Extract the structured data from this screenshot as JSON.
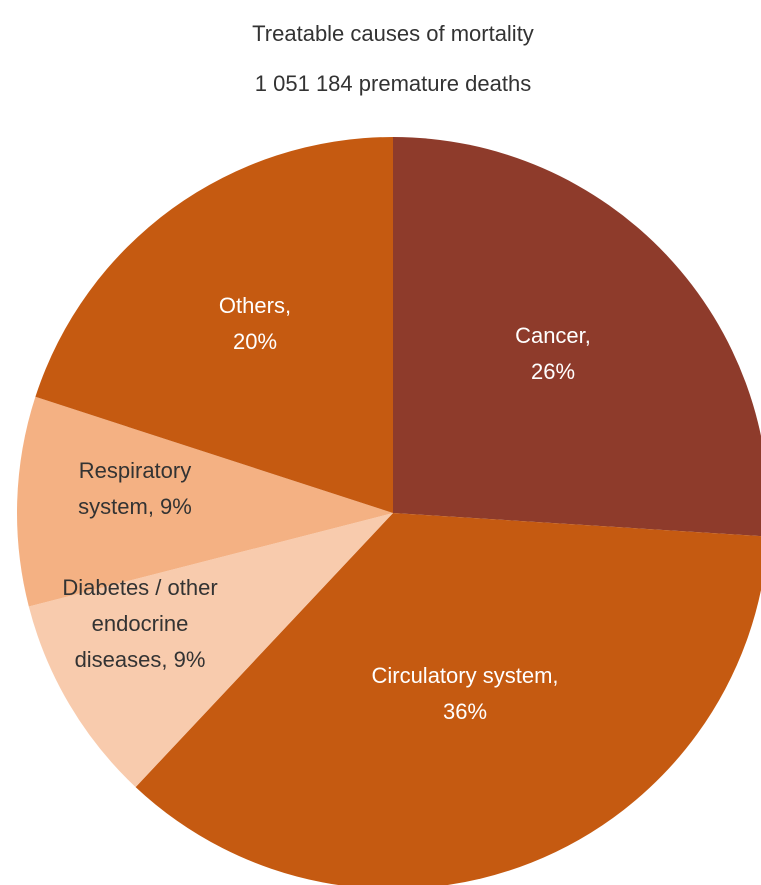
{
  "chart_data": {
    "type": "pie",
    "title": "Treatable causes of mortality",
    "subtitle": "1 051 184 premature deaths",
    "categories": [
      "Cancer",
      "Circulatory system",
      "Diabetes / other endocrine diseases",
      "Respiratory system",
      "Others"
    ],
    "values": [
      26,
      36,
      9,
      9,
      20
    ],
    "value_labels": [
      [
        "Cancer,",
        "26%"
      ],
      [
        "Circulatory system,",
        "36%"
      ],
      [
        "Diabetes / other",
        "endocrine",
        "diseases, 9%"
      ],
      [
        "Respiratory",
        "system, 9%"
      ],
      [
        "Others,",
        "20%"
      ]
    ],
    "colors": [
      "#8e3b2b",
      "#c55a11",
      "#f8cbad",
      "#f4b183",
      "#c55a11"
    ],
    "start_angle": 90,
    "direction": "clockwise"
  }
}
